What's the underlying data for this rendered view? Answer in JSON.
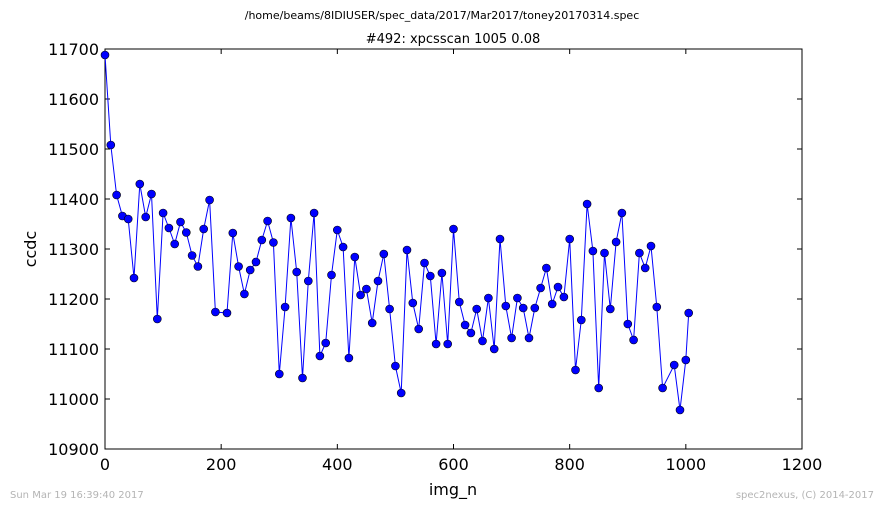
{
  "suptitle": "/home/beams/8IDIUSER/spec_data/2017/Mar2017/toney20170314.spec",
  "footer_left": "Sun Mar 19 16:39:40 2017",
  "footer_right": "spec2nexus, (C) 2014-2017",
  "chart_data": {
    "type": "line",
    "title": "#492: xpcsscan 1005 0.08",
    "xlabel": "img_n",
    "ylabel": "ccdc",
    "xlim": [
      0,
      1200
    ],
    "ylim": [
      10900,
      11700
    ],
    "xticks": [
      "0",
      "200",
      "400",
      "600",
      "800",
      "1000",
      "1200"
    ],
    "yticks": [
      "10900",
      "11000",
      "11100",
      "11200",
      "11300",
      "11400",
      "11500",
      "11600",
      "11700"
    ],
    "grid": false,
    "marker": "circle",
    "line_color": "#0000ff",
    "series": [
      {
        "x": [
          0,
          10,
          20,
          30,
          40,
          50,
          60,
          70,
          80,
          90,
          100,
          110,
          120,
          130,
          140,
          150,
          160,
          170,
          180,
          190,
          210,
          220,
          230,
          240,
          250,
          260,
          270,
          280,
          290,
          300,
          310,
          320,
          330,
          340,
          350,
          360,
          370,
          380,
          390,
          400,
          410,
          420,
          430,
          440,
          450,
          460,
          470,
          480,
          490,
          500,
          510,
          520,
          530,
          540,
          550,
          560,
          570,
          580,
          590,
          600,
          610,
          620,
          630,
          640,
          650,
          660,
          670,
          680,
          690,
          700,
          710,
          720,
          730,
          740,
          750,
          760,
          770,
          780,
          790,
          800,
          810,
          820,
          830,
          840,
          850,
          860,
          870,
          880,
          890,
          900,
          910,
          920,
          930,
          940,
          950,
          960,
          980,
          990,
          1000,
          1005
        ],
        "values": [
          11688,
          11508,
          11408,
          11366,
          11360,
          11242,
          11430,
          11364,
          11410,
          11160,
          11372,
          11342,
          11310,
          11354,
          11333,
          11287,
          11265,
          11340,
          11398,
          11174,
          11172,
          11332,
          11265,
          11210,
          11258,
          11274,
          11318,
          11356,
          11313,
          11050,
          11184,
          11362,
          11254,
          11042,
          11236,
          11372,
          11086,
          11112,
          11248,
          11338,
          11304,
          11082,
          11284,
          11208,
          11220,
          11152,
          11236,
          11290,
          11180,
          11066,
          11012,
          11298,
          11192,
          11140,
          11272,
          11246,
          11110,
          11252,
          11110,
          11340,
          11194,
          11148,
          11132,
          11180,
          11116,
          11202,
          11100,
          11320,
          11186,
          11122,
          11202,
          11182,
          11122,
          11182,
          11222,
          11262,
          11190,
          11224,
          11204,
          11320,
          11058,
          11158,
          11390,
          11296,
          11022,
          11292,
          11180,
          11314,
          11372,
          11150,
          11118,
          11292,
          11262,
          11306,
          11184,
          11022,
          11068,
          10978,
          11078,
          11172
        ]
      }
    ]
  }
}
